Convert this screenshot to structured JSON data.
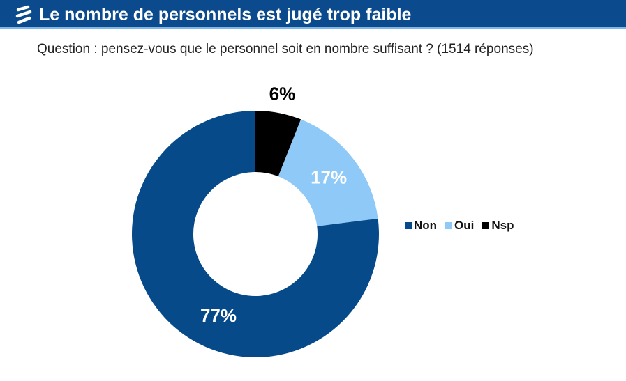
{
  "header": {
    "title": "Le nombre de personnels est jugé trop faible",
    "logo_icon": "stripes-logo-icon",
    "background": "#0b4a8c"
  },
  "subtitle": "Question : pensez-vous que le personnel soit en nombre suffisant ?  (1514 réponses)",
  "chart_data": {
    "type": "pie",
    "variant": "donut",
    "title": "Le nombre de personnels est jugé trop faible",
    "subtitle": "Question : pensez-vous que le personnel soit en nombre suffisant ?  (1514 réponses)",
    "total_responses": 1514,
    "start": "top",
    "direction": "clockwise",
    "legend_position": "right",
    "slices": [
      {
        "name": "Nsp",
        "value": 6,
        "label": "6%",
        "color": "#000000",
        "label_color": "#000000",
        "label_outside": true
      },
      {
        "name": "Oui",
        "value": 17,
        "label": "17%",
        "color": "#8ec9f7",
        "label_color": "#ffffff",
        "label_outside": false
      },
      {
        "name": "Non",
        "value": 77,
        "label": "77%",
        "color": "#064a8a",
        "label_color": "#ffffff",
        "label_outside": false
      }
    ],
    "legend": [
      {
        "name": "Non",
        "color": "#064a8a"
      },
      {
        "name": "Oui",
        "color": "#8ec9f7"
      },
      {
        "name": "Nsp",
        "color": "#000000"
      }
    ]
  }
}
